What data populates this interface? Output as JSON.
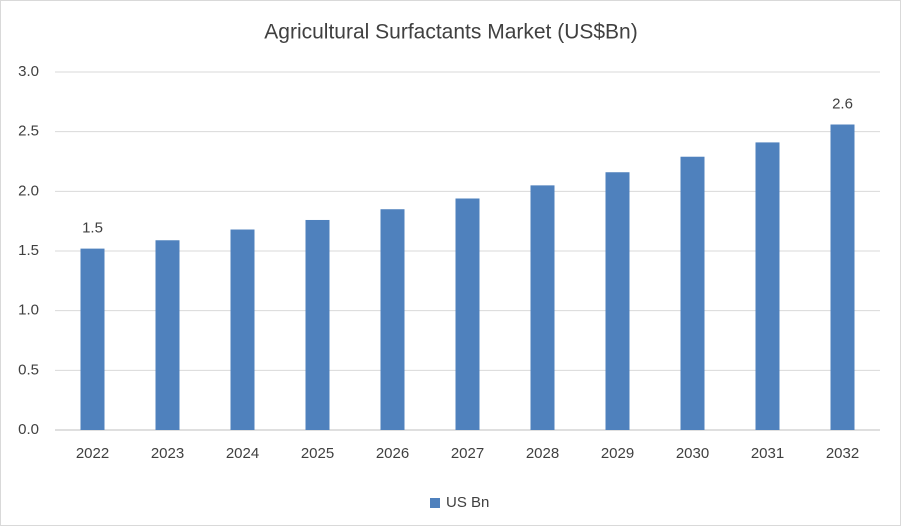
{
  "chart_data": {
    "type": "bar",
    "title": "Agricultural Surfactants Market (US$Bn)",
    "categories": [
      "2022",
      "2023",
      "2024",
      "2025",
      "2026",
      "2027",
      "2028",
      "2029",
      "2030",
      "2031",
      "2032"
    ],
    "series": [
      {
        "name": "US Bn",
        "color": "#4f81bd",
        "values": [
          1.52,
          1.59,
          1.68,
          1.76,
          1.85,
          1.94,
          2.05,
          2.16,
          2.29,
          2.41,
          2.56
        ],
        "value_labels": [
          "1.5",
          null,
          null,
          null,
          null,
          null,
          null,
          null,
          null,
          null,
          "2.6"
        ]
      }
    ],
    "ylim": [
      0,
      3
    ],
    "yticks": [
      {
        "value": 0,
        "label": "0.0"
      },
      {
        "value": 0.5,
        "label": "0.5"
      },
      {
        "value": 1,
        "label": "1.0"
      },
      {
        "value": 1.5,
        "label": "1.5"
      },
      {
        "value": 2,
        "label": "2.0"
      },
      {
        "value": 2.5,
        "label": "2.5"
      },
      {
        "value": 3,
        "label": "3.0"
      }
    ],
    "grid": true,
    "legend": "bottom"
  }
}
